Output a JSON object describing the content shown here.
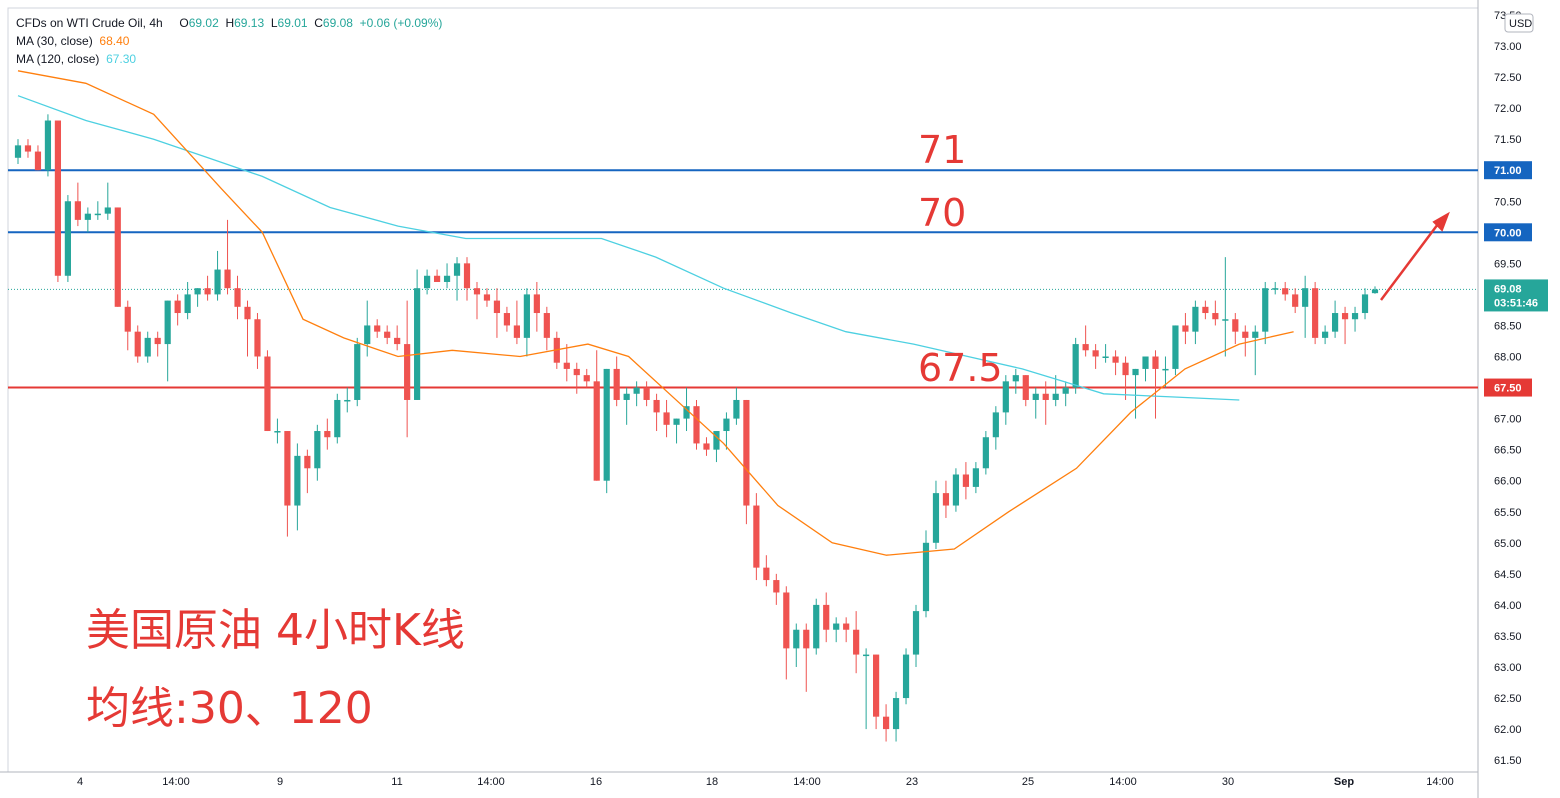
{
  "legend": {
    "symbol": "CFDs on WTI Crude Oil, 4h",
    "o_label": "O",
    "o": "69.02",
    "h_label": "H",
    "h": "69.13",
    "l_label": "L",
    "l": "69.01",
    "c_label": "C",
    "c": "69.08",
    "chg": "+0.06 (+0.09%)",
    "ma30_label": "MA (30, close)",
    "ma30_value": "68.40",
    "ma120_label": "MA (120, close)",
    "ma120_value": "67.30"
  },
  "price_axis": {
    "currency": "USD",
    "ticks": [
      "73.50",
      "73.00",
      "72.50",
      "72.00",
      "71.50",
      "71.00",
      "70.50",
      "70.00",
      "69.50",
      "69.08",
      "68.50",
      "68.00",
      "67.50",
      "67.00",
      "66.50",
      "66.00",
      "65.50",
      "65.00",
      "64.50",
      "64.00",
      "63.50",
      "63.00",
      "62.50",
      "62.00",
      "61.50"
    ],
    "current_price": "69.08",
    "countdown": "03:51:46"
  },
  "time_axis": {
    "ticks": [
      "4",
      "14:00",
      "9",
      "11",
      "14:00",
      "16",
      "18",
      "14:00",
      "23",
      "25",
      "14:00",
      "30",
      "Sep",
      "14:00"
    ]
  },
  "annotations": {
    "level_71": "71",
    "level_70": "70",
    "level_675": "67.5",
    "title": "美国原油 4小时K线",
    "ma_note": "均线:30、120"
  },
  "colors": {
    "up": "#26a69a",
    "down": "#ef5350",
    "ma30": "#ff7f0e",
    "ma120": "#4dd0e1",
    "blue_line": "#1565c0",
    "red_line": "#e53935",
    "annotation": "#e53935"
  },
  "chart_data": {
    "type": "candlestick",
    "title": "CFDs on WTI Crude Oil, 4h",
    "ylim": [
      61.5,
      73.5
    ],
    "horizontal_levels": [
      {
        "value": 71.0,
        "label": "71.00",
        "color": "#1565c0"
      },
      {
        "value": 70.0,
        "label": "70.00",
        "color": "#1565c0"
      },
      {
        "value": 67.5,
        "label": "67.50",
        "color": "#e53935"
      }
    ],
    "ohlc": [
      [
        71.2,
        71.5,
        71.1,
        71.4
      ],
      [
        71.4,
        71.5,
        71.2,
        71.3
      ],
      [
        71.3,
        71.4,
        71.0,
        71.0
      ],
      [
        71.0,
        71.9,
        70.9,
        71.8
      ],
      [
        71.8,
        71.8,
        69.2,
        69.3
      ],
      [
        69.3,
        70.6,
        69.2,
        70.5
      ],
      [
        70.5,
        70.8,
        70.1,
        70.2
      ],
      [
        70.2,
        70.4,
        70.0,
        70.3
      ],
      [
        70.3,
        70.5,
        70.2,
        70.3
      ],
      [
        70.3,
        70.8,
        70.2,
        70.4
      ],
      [
        70.4,
        70.4,
        68.8,
        68.8
      ],
      [
        68.8,
        68.9,
        68.1,
        68.4
      ],
      [
        68.4,
        68.5,
        67.9,
        68.0
      ],
      [
        68.0,
        68.4,
        67.9,
        68.3
      ],
      [
        68.3,
        68.4,
        68.0,
        68.2
      ],
      [
        68.2,
        68.9,
        67.6,
        68.9
      ],
      [
        68.9,
        69.0,
        68.5,
        68.7
      ],
      [
        68.7,
        69.2,
        68.6,
        69.0
      ],
      [
        69.0,
        69.1,
        68.8,
        69.1
      ],
      [
        69.1,
        69.3,
        68.9,
        69.0
      ],
      [
        69.0,
        69.7,
        68.9,
        69.4
      ],
      [
        69.4,
        70.2,
        69.0,
        69.1
      ],
      [
        69.1,
        69.3,
        68.6,
        68.8
      ],
      [
        68.8,
        68.9,
        68.0,
        68.6
      ],
      [
        68.6,
        68.7,
        67.8,
        68.0
      ],
      [
        68.0,
        68.1,
        66.8,
        66.8
      ],
      [
        66.8,
        67.0,
        66.6,
        66.8
      ],
      [
        66.8,
        66.8,
        65.1,
        65.6
      ],
      [
        65.6,
        66.6,
        65.2,
        66.4
      ],
      [
        66.4,
        66.5,
        65.8,
        66.2
      ],
      [
        66.2,
        66.9,
        66.0,
        66.8
      ],
      [
        66.8,
        67.0,
        66.5,
        66.7
      ],
      [
        66.7,
        67.4,
        66.6,
        67.3
      ],
      [
        67.3,
        67.5,
        67.1,
        67.3
      ],
      [
        67.3,
        68.3,
        67.2,
        68.2
      ],
      [
        68.2,
        68.9,
        68.0,
        68.5
      ],
      [
        68.5,
        68.6,
        68.3,
        68.4
      ],
      [
        68.4,
        68.5,
        68.2,
        68.3
      ],
      [
        68.3,
        68.5,
        68.1,
        68.2
      ],
      [
        68.2,
        68.9,
        66.7,
        67.3
      ],
      [
        67.3,
        69.4,
        67.3,
        69.1
      ],
      [
        69.1,
        69.4,
        69.0,
        69.3
      ],
      [
        69.3,
        69.4,
        69.2,
        69.2
      ],
      [
        69.2,
        69.5,
        69.1,
        69.3
      ],
      [
        69.3,
        69.6,
        68.9,
        69.5
      ],
      [
        69.5,
        69.6,
        68.9,
        69.1
      ],
      [
        69.1,
        69.2,
        68.6,
        69.0
      ],
      [
        69.0,
        69.1,
        68.8,
        68.9
      ],
      [
        68.9,
        69.1,
        68.3,
        68.7
      ],
      [
        68.7,
        68.8,
        68.4,
        68.5
      ],
      [
        68.5,
        68.9,
        68.2,
        68.3
      ],
      [
        68.3,
        69.1,
        68.0,
        69.0
      ],
      [
        69.0,
        69.2,
        68.4,
        68.7
      ],
      [
        68.7,
        68.8,
        68.1,
        68.3
      ],
      [
        68.3,
        68.4,
        67.8,
        67.9
      ],
      [
        67.9,
        68.2,
        67.6,
        67.8
      ],
      [
        67.8,
        67.9,
        67.4,
        67.7
      ],
      [
        67.7,
        67.8,
        67.5,
        67.6
      ],
      [
        67.6,
        68.1,
        66.0,
        66.0
      ],
      [
        66.0,
        67.8,
        65.8,
        67.8
      ],
      [
        67.8,
        68.0,
        67.2,
        67.3
      ],
      [
        67.3,
        67.5,
        66.9,
        67.4
      ],
      [
        67.4,
        67.6,
        67.2,
        67.5
      ],
      [
        67.5,
        67.6,
        67.2,
        67.3
      ],
      [
        67.3,
        67.4,
        66.8,
        67.1
      ],
      [
        67.1,
        67.3,
        66.7,
        66.9
      ],
      [
        66.9,
        67.0,
        66.6,
        67.0
      ],
      [
        67.0,
        67.5,
        66.8,
        67.2
      ],
      [
        67.2,
        67.3,
        66.5,
        66.6
      ],
      [
        66.6,
        66.7,
        66.4,
        66.5
      ],
      [
        66.5,
        66.7,
        66.3,
        66.8
      ],
      [
        66.8,
        67.1,
        66.5,
        67.0
      ],
      [
        67.0,
        67.5,
        66.9,
        67.3
      ],
      [
        67.3,
        67.3,
        65.3,
        65.6
      ],
      [
        65.6,
        65.8,
        64.4,
        64.6
      ],
      [
        64.6,
        64.8,
        64.3,
        64.4
      ],
      [
        64.4,
        64.5,
        64.0,
        64.2
      ],
      [
        64.2,
        64.3,
        62.8,
        63.3
      ],
      [
        63.3,
        63.7,
        63.0,
        63.6
      ],
      [
        63.6,
        63.7,
        62.6,
        63.3
      ],
      [
        63.3,
        64.1,
        63.2,
        64.0
      ],
      [
        64.0,
        64.2,
        63.4,
        63.6
      ],
      [
        63.6,
        63.8,
        63.4,
        63.7
      ],
      [
        63.7,
        63.8,
        63.4,
        63.6
      ],
      [
        63.6,
        63.9,
        62.9,
        63.2
      ],
      [
        63.2,
        63.3,
        62.0,
        63.2
      ],
      [
        63.2,
        63.2,
        62.0,
        62.2
      ],
      [
        62.2,
        62.4,
        61.8,
        62.0
      ],
      [
        62.0,
        62.6,
        61.8,
        62.5
      ],
      [
        62.5,
        63.3,
        62.4,
        63.2
      ],
      [
        63.2,
        64.0,
        63.0,
        63.9
      ],
      [
        63.9,
        65.2,
        63.8,
        65.0
      ],
      [
        65.0,
        66.0,
        64.9,
        65.8
      ],
      [
        65.8,
        66.0,
        65.4,
        65.6
      ],
      [
        65.6,
        66.2,
        65.5,
        66.1
      ],
      [
        66.1,
        66.3,
        65.7,
        65.9
      ],
      [
        65.9,
        66.3,
        65.8,
        66.2
      ],
      [
        66.2,
        66.8,
        66.1,
        66.7
      ],
      [
        66.7,
        67.2,
        66.5,
        67.1
      ],
      [
        67.1,
        67.7,
        66.9,
        67.6
      ],
      [
        67.6,
        67.8,
        67.4,
        67.7
      ],
      [
        67.7,
        67.7,
        67.2,
        67.3
      ],
      [
        67.3,
        67.5,
        67.0,
        67.4
      ],
      [
        67.4,
        67.6,
        66.9,
        67.3
      ],
      [
        67.3,
        67.7,
        67.2,
        67.4
      ],
      [
        67.4,
        67.6,
        67.2,
        67.5
      ],
      [
        67.5,
        68.3,
        67.4,
        68.2
      ],
      [
        68.2,
        68.5,
        68.0,
        68.1
      ],
      [
        68.1,
        68.2,
        67.8,
        68.0
      ],
      [
        68.0,
        68.2,
        67.9,
        68.0
      ],
      [
        68.0,
        68.1,
        67.7,
        67.9
      ],
      [
        67.9,
        68.0,
        67.3,
        67.7
      ],
      [
        67.7,
        67.8,
        67.0,
        67.8
      ],
      [
        67.8,
        68.0,
        67.6,
        68.0
      ],
      [
        68.0,
        68.1,
        67.0,
        67.8
      ],
      [
        67.8,
        68.0,
        67.5,
        67.8
      ],
      [
        67.8,
        68.5,
        67.7,
        68.5
      ],
      [
        68.5,
        68.7,
        68.2,
        68.4
      ],
      [
        68.4,
        68.9,
        68.2,
        68.8
      ],
      [
        68.8,
        68.9,
        68.6,
        68.7
      ],
      [
        68.7,
        68.9,
        68.5,
        68.6
      ],
      [
        68.6,
        69.6,
        68.0,
        68.6
      ],
      [
        68.6,
        68.7,
        68.2,
        68.4
      ],
      [
        68.4,
        68.5,
        68.0,
        68.3
      ],
      [
        68.3,
        68.5,
        67.7,
        68.4
      ],
      [
        68.4,
        69.2,
        68.2,
        69.1
      ],
      [
        69.1,
        69.2,
        69.0,
        69.1
      ],
      [
        69.1,
        69.2,
        68.9,
        69.0
      ],
      [
        69.0,
        69.1,
        68.7,
        68.8
      ],
      [
        68.8,
        69.3,
        68.3,
        69.1
      ],
      [
        69.1,
        69.2,
        68.2,
        68.3
      ],
      [
        68.3,
        68.5,
        68.2,
        68.4
      ],
      [
        68.4,
        68.9,
        68.3,
        68.7
      ],
      [
        68.7,
        68.8,
        68.2,
        68.6
      ],
      [
        68.6,
        68.8,
        68.4,
        68.7
      ],
      [
        68.7,
        69.1,
        68.6,
        69.0
      ],
      [
        69.02,
        69.13,
        69.01,
        69.08
      ]
    ],
    "ma30": [
      [
        0,
        72.6
      ],
      [
        0.05,
        72.4
      ],
      [
        0.1,
        71.9
      ],
      [
        0.15,
        70.7
      ],
      [
        0.18,
        70.0
      ],
      [
        0.21,
        68.6
      ],
      [
        0.24,
        68.3
      ],
      [
        0.28,
        68.0
      ],
      [
        0.32,
        68.1
      ],
      [
        0.37,
        68.0
      ],
      [
        0.42,
        68.2
      ],
      [
        0.45,
        68.0
      ],
      [
        0.48,
        67.4
      ],
      [
        0.52,
        66.6
      ],
      [
        0.56,
        65.6
      ],
      [
        0.6,
        65.0
      ],
      [
        0.64,
        64.8
      ],
      [
        0.69,
        64.9
      ],
      [
        0.73,
        65.5
      ],
      [
        0.78,
        66.2
      ],
      [
        0.82,
        67.1
      ],
      [
        0.86,
        67.8
      ],
      [
        0.9,
        68.2
      ],
      [
        0.94,
        68.4
      ]
    ],
    "ma120": [
      [
        0,
        72.2
      ],
      [
        0.05,
        71.8
      ],
      [
        0.1,
        71.5
      ],
      [
        0.14,
        71.2
      ],
      [
        0.18,
        70.9
      ],
      [
        0.23,
        70.4
      ],
      [
        0.28,
        70.1
      ],
      [
        0.33,
        69.9
      ],
      [
        0.38,
        69.9
      ],
      [
        0.43,
        69.9
      ],
      [
        0.47,
        69.6
      ],
      [
        0.52,
        69.1
      ],
      [
        0.57,
        68.7
      ],
      [
        0.61,
        68.4
      ],
      [
        0.66,
        68.2
      ],
      [
        0.7,
        68.0
      ],
      [
        0.74,
        67.8
      ],
      [
        0.77,
        67.6
      ],
      [
        0.8,
        67.4
      ],
      [
        0.85,
        67.35
      ],
      [
        0.9,
        67.3
      ]
    ]
  }
}
